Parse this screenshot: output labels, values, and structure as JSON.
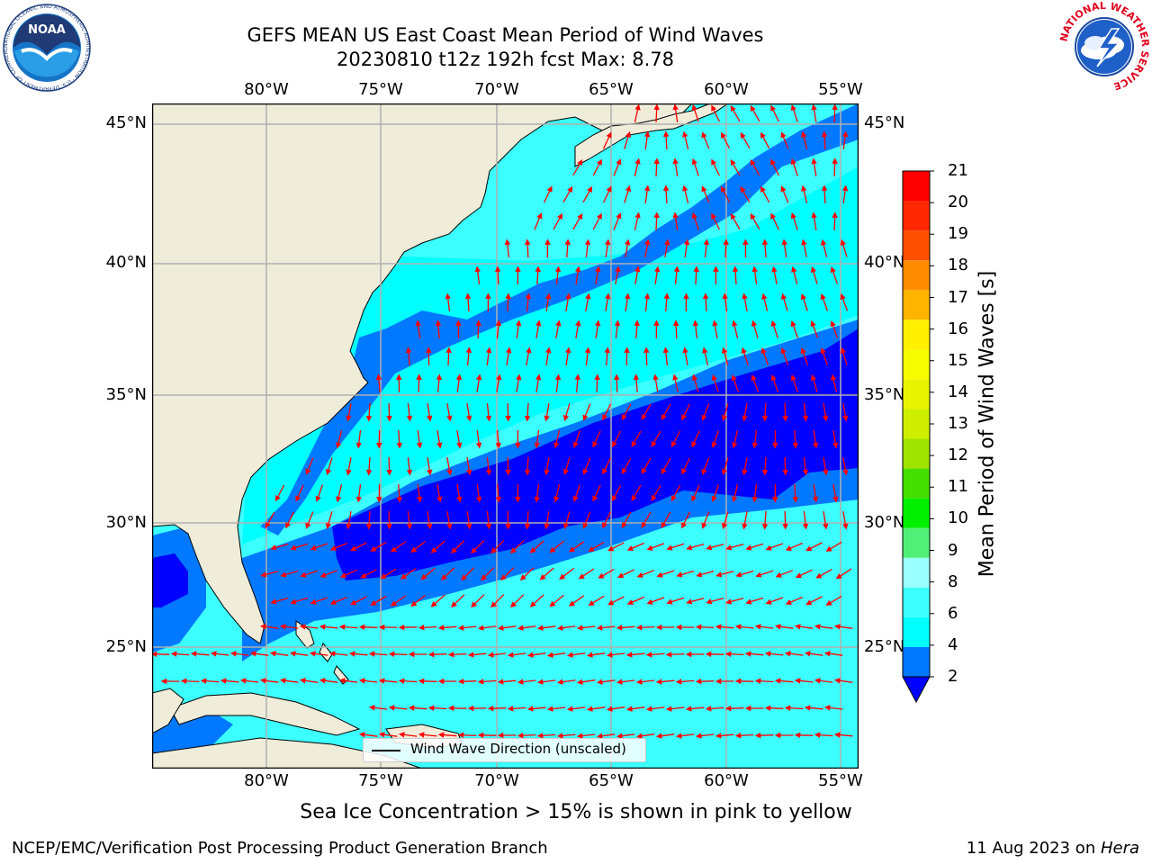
{
  "title": {
    "line1": "GEFS MEAN US East Coast Mean Period of Wind Waves",
    "line2": "20230810 t12z 192h fcst   Max: 8.78"
  },
  "map": {
    "lon_ticks": [
      "80°W",
      "75°W",
      "70°W",
      "65°W",
      "60°W",
      "55°W"
    ],
    "lat_ticks": [
      "45°N",
      "40°N",
      "35°N",
      "30°N",
      "25°N"
    ],
    "legend_label": "Wind Wave Direction (unscaled)",
    "colors": {
      "land": "#efedda",
      "coastline": "#000000",
      "grid": "#b0b0b0",
      "arrows": "#ff0000"
    }
  },
  "colorbar": {
    "title": "Mean Period of Wind Waves [s]",
    "labels": [
      "2",
      "4",
      "6",
      "8",
      "9",
      "10",
      "11",
      "12",
      "13",
      "14",
      "15",
      "16",
      "17",
      "18",
      "19",
      "20",
      "21"
    ],
    "colors": [
      "#0078ff",
      "#00ffff",
      "#3cffff",
      "#99ffff",
      "#50f078",
      "#00f000",
      "#44df00",
      "#9ee400",
      "#cef000",
      "#e8f500",
      "#f7fc00",
      "#fff000",
      "#ffb400",
      "#ff8c00",
      "#ff5000",
      "#ff2800",
      "#ff0000"
    ],
    "extend_color": "#0000ff"
  },
  "caption": "Sea Ice Concentration > 15% is shown in pink to yellow",
  "credit": "NCEP/EMC/Verification Post Processing Product Generation Branch",
  "datestamp": {
    "date": "11 Aug 2023 on ",
    "host": "Hera"
  },
  "logos": {
    "noaa_text": "NOAA",
    "noaa_ring": "NATIONAL OCEANIC AND ATMOSPHERIC ADMINISTRATION · U.S. DEPARTMENT OF COMMERCE",
    "nws_ring": "NATIONAL WEATHER SERVICE"
  }
}
